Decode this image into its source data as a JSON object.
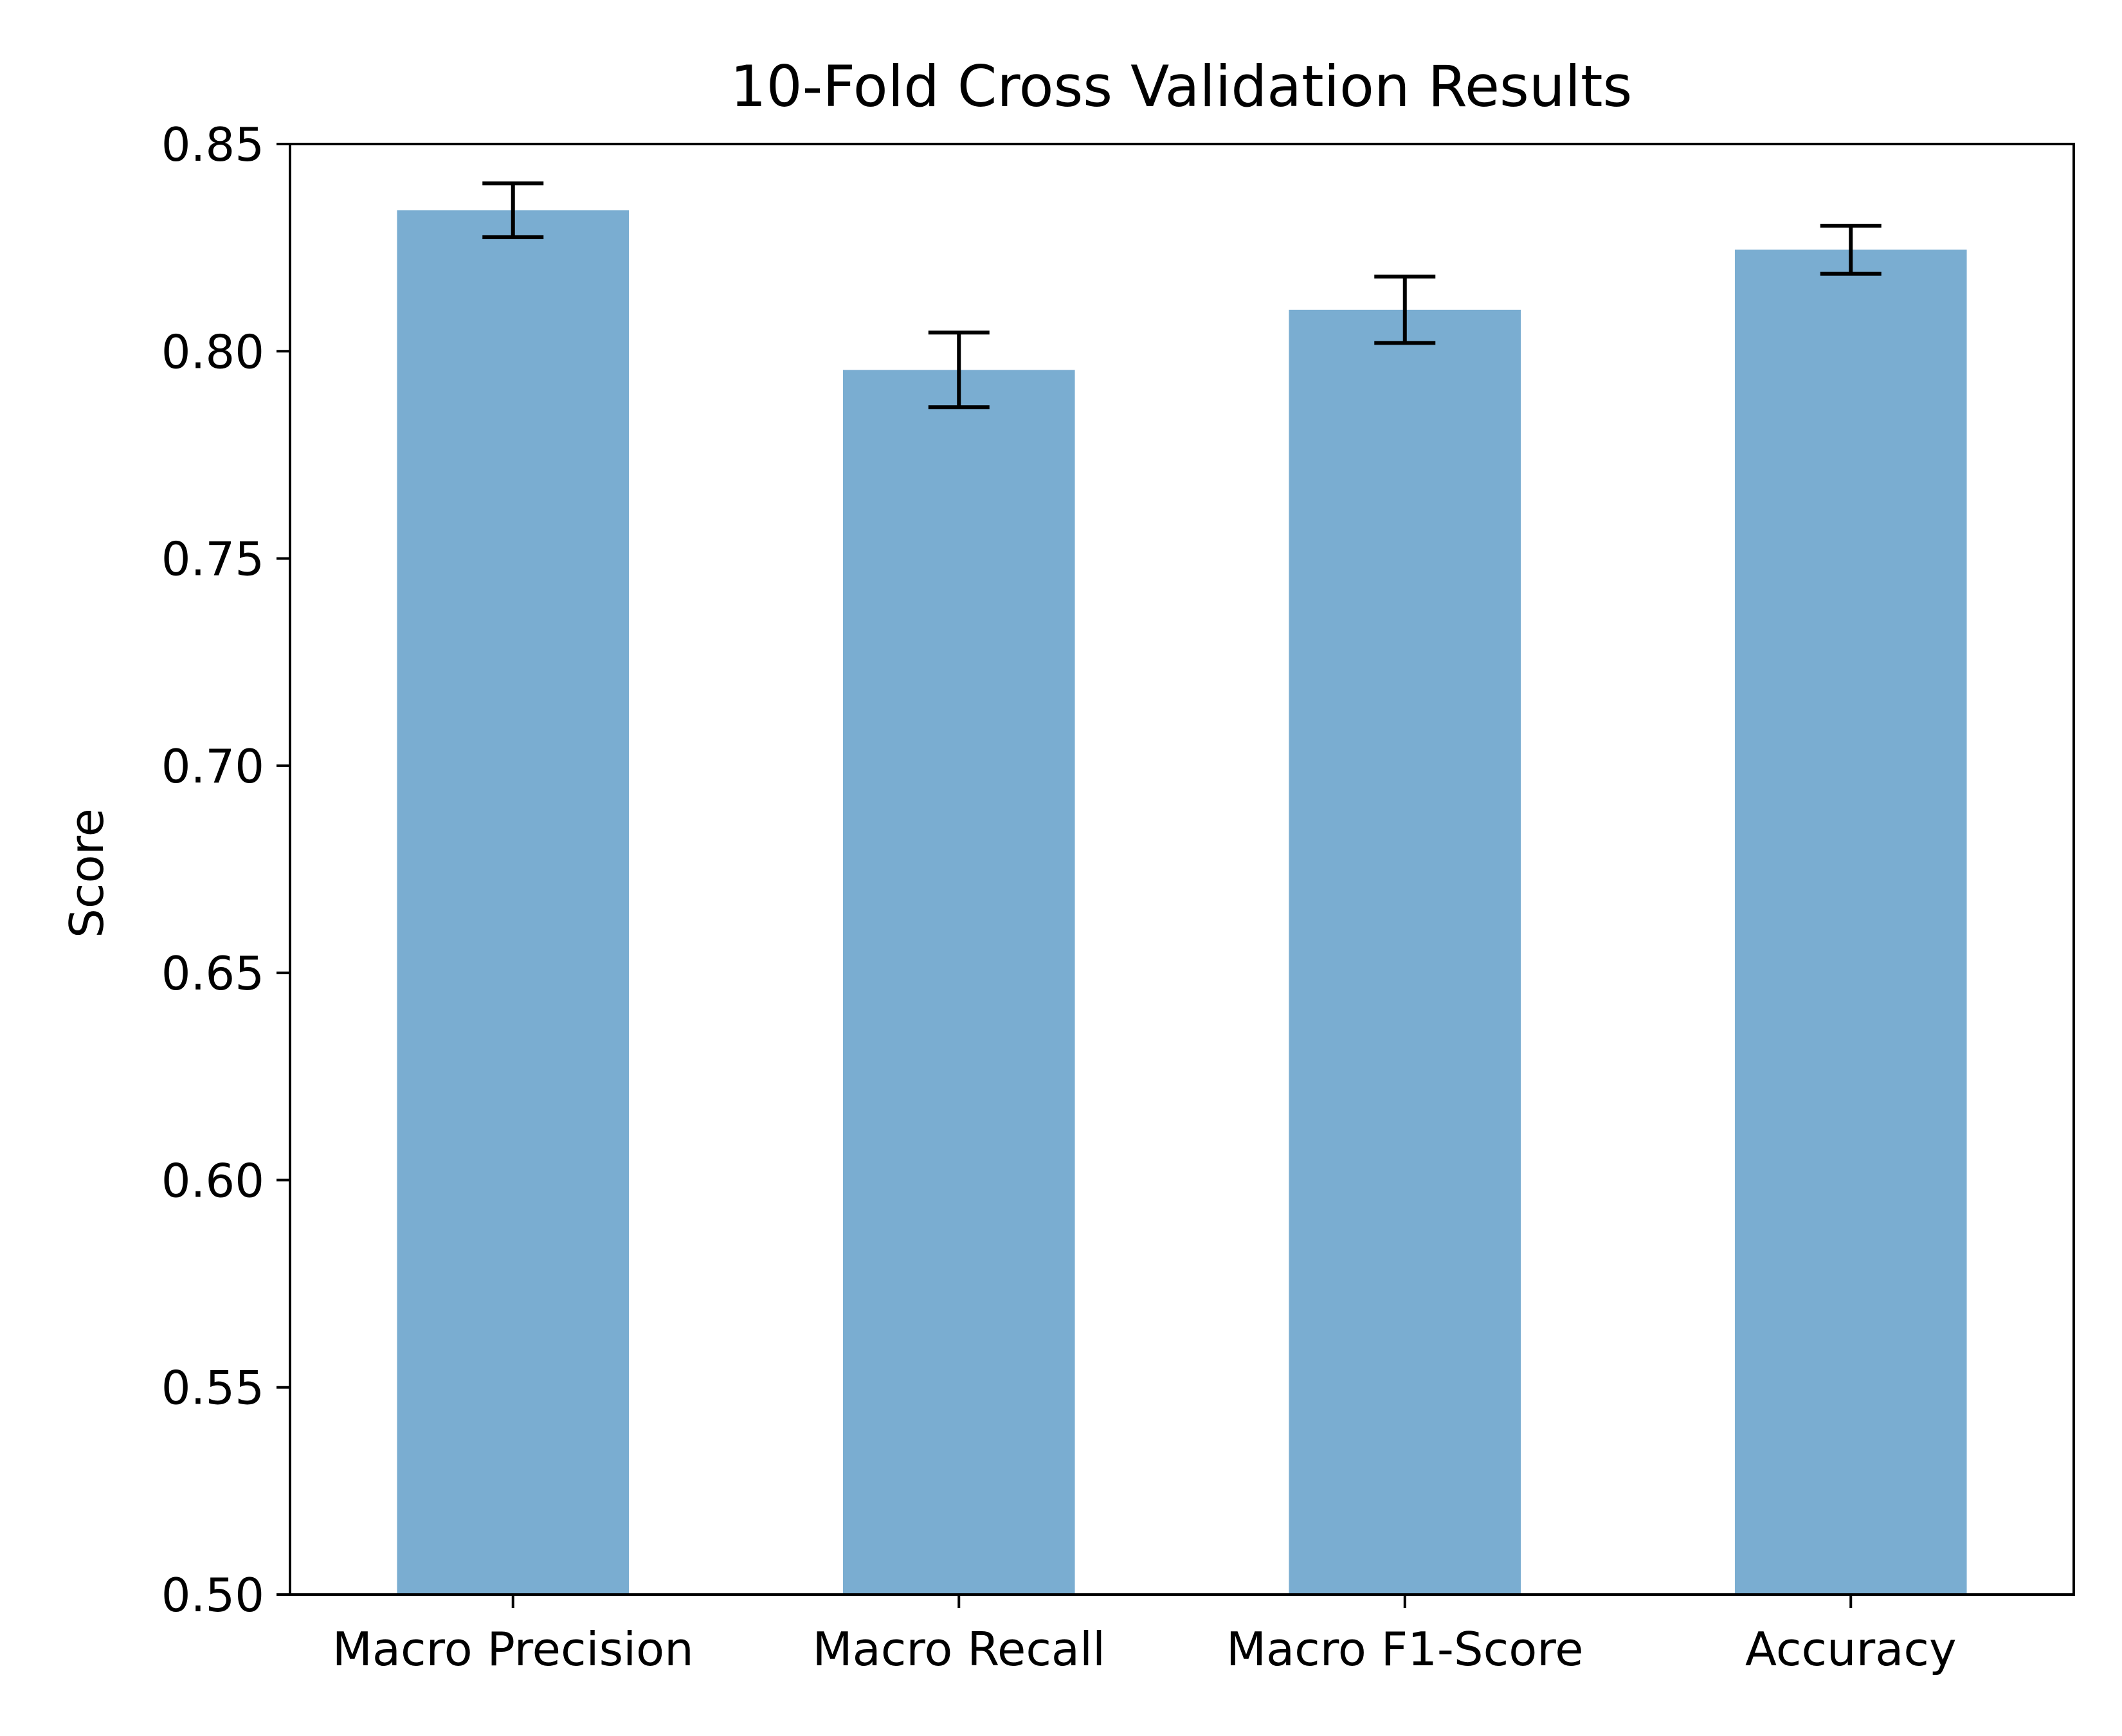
{
  "chart_data": {
    "type": "bar",
    "title": "10-Fold Cross Validation Results",
    "xlabel": "",
    "ylabel": "Score",
    "categories": [
      "Macro Precision",
      "Macro Recall",
      "Macro F1-Score",
      "Accuracy"
    ],
    "values": [
      0.834,
      0.7955,
      0.81,
      0.8245
    ],
    "error": [
      0.0065,
      0.009,
      0.008,
      0.0058
    ],
    "ylim": [
      0.5,
      0.85
    ],
    "yticks": [
      0.5,
      0.55,
      0.6,
      0.65,
      0.7,
      0.75,
      0.8,
      0.85
    ],
    "ytick_labels": [
      "0.50",
      "0.55",
      "0.60",
      "0.65",
      "0.70",
      "0.75",
      "0.80",
      "0.85"
    ],
    "grid": false,
    "colors": {
      "bar": "#7aadd1",
      "error_bar": "#000000",
      "axes": "#000000"
    }
  }
}
